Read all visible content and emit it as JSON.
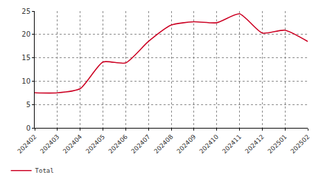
{
  "chart_data": {
    "type": "line",
    "categories": [
      "202402",
      "202403",
      "202404",
      "202405",
      "202406",
      "202407",
      "202408",
      "202409",
      "202410",
      "202411",
      "202412",
      "202501",
      "202502"
    ],
    "series": [
      {
        "name": "Total",
        "color": "#cc0022",
        "line_style": "solid",
        "values": [
          7.5,
          7.5,
          8.4,
          14.1,
          13.9,
          18.5,
          22.0,
          22.7,
          22.5,
          24.4,
          20.3,
          20.9,
          18.5
        ]
      }
    ],
    "ylim": [
      0,
      25
    ],
    "yticks": [
      0,
      5,
      10,
      15,
      20,
      25
    ],
    "grid": true,
    "legend": "bottom left"
  }
}
